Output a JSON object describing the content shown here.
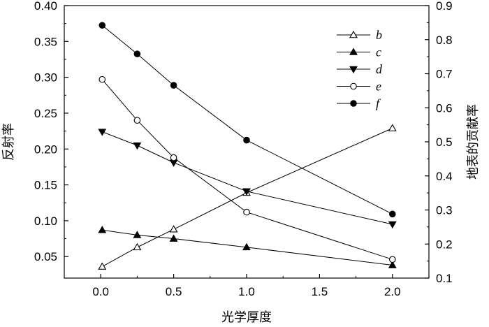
{
  "chart_data": {
    "type": "line",
    "xlabel": "光学厚度",
    "ylabel": "反射率",
    "y2label": "地表的贡献率",
    "xlim": [
      -0.25,
      2.25
    ],
    "ylim": [
      0.02,
      0.4
    ],
    "y2lim": [
      0.1,
      0.9
    ],
    "xticks": [
      "0.0",
      "0.5",
      "1.0",
      "1.5",
      "2.0"
    ],
    "yticks": [
      "0.05",
      "0.10",
      "0.15",
      "0.20",
      "0.25",
      "0.30",
      "0.35",
      "0.40"
    ],
    "y2ticks": [
      "0.1",
      "0.2",
      "0.3",
      "0.4",
      "0.5",
      "0.6",
      "0.7",
      "0.8",
      "0.9"
    ],
    "legend_position": "top-right",
    "series": [
      {
        "name": "b",
        "marker": "triangle-up-open",
        "axis": "left",
        "x": [
          0.01,
          0.25,
          0.5,
          1.0,
          2.0
        ],
        "y": [
          0.036,
          0.063,
          0.088,
          0.139,
          0.229
        ]
      },
      {
        "name": "c",
        "marker": "triangle-up-filled",
        "axis": "left",
        "x": [
          0.01,
          0.25,
          0.5,
          1.0,
          2.0
        ],
        "y": [
          0.087,
          0.08,
          0.075,
          0.063,
          0.038
        ]
      },
      {
        "name": "d",
        "marker": "triangle-down-filled",
        "axis": "left",
        "x": [
          0.01,
          0.25,
          0.5,
          1.0,
          2.0
        ],
        "y": [
          0.224,
          0.205,
          0.181,
          0.141,
          0.095
        ]
      },
      {
        "name": "e",
        "marker": "circle-open",
        "axis": "left",
        "x": [
          0.01,
          0.25,
          0.5,
          1.0,
          2.0
        ],
        "y": [
          0.297,
          0.24,
          0.188,
          0.112,
          0.046
        ]
      },
      {
        "name": "f",
        "marker": "circle-filled",
        "axis": "right",
        "x": [
          0.01,
          0.25,
          0.5,
          1.0,
          2.0
        ],
        "y": [
          0.842,
          0.758,
          0.666,
          0.505,
          0.288
        ]
      }
    ]
  }
}
